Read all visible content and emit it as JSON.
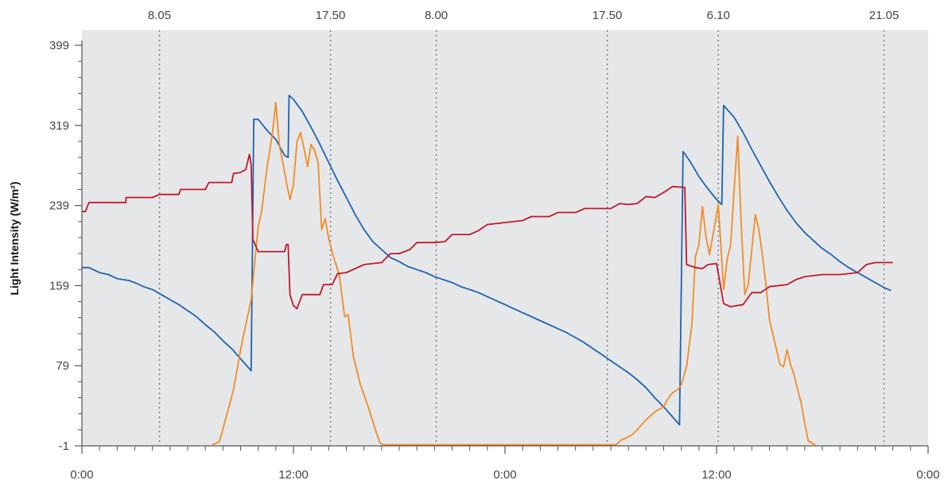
{
  "chart_data": {
    "type": "line",
    "ylabel": "Light Intensity (W/m²)",
    "xlabel": "",
    "xlim": [
      0,
      48
    ],
    "ylim": [
      -1,
      399
    ],
    "x_ticks": [
      0,
      12,
      24,
      36,
      48
    ],
    "x_tick_labels": [
      "0:00",
      "12:00",
      "0:00",
      "12:00",
      "0:00"
    ],
    "y_ticks": [
      -1,
      79,
      159,
      239,
      319,
      399
    ],
    "y_tick_labels": [
      "-1",
      "79",
      "159",
      "239",
      "319",
      "399"
    ],
    "grid": false,
    "background": "#e6e7e9",
    "event_markers": [
      {
        "x": 4.4,
        "label": "8.05"
      },
      {
        "x": 14.1,
        "label": "17.50"
      },
      {
        "x": 20.1,
        "label": "8.00"
      },
      {
        "x": 29.8,
        "label": "17.50"
      },
      {
        "x": 36.1,
        "label": "6.10"
      },
      {
        "x": 45.5,
        "label": "21.05"
      }
    ],
    "series": [
      {
        "color": "#1f63b0",
        "points": [
          [
            0,
            177
          ],
          [
            0.4,
            177
          ],
          [
            1,
            172
          ],
          [
            1.5,
            170
          ],
          [
            2,
            166
          ],
          [
            2.7,
            164
          ],
          [
            3,
            162
          ],
          [
            3.5,
            158
          ],
          [
            4,
            155
          ],
          [
            4.5,
            150
          ],
          [
            5,
            145
          ],
          [
            5.5,
            140
          ],
          [
            6,
            134
          ],
          [
            6.5,
            128
          ],
          [
            7,
            120
          ],
          [
            7.5,
            113
          ],
          [
            8,
            104
          ],
          [
            8.5,
            96
          ],
          [
            9,
            86
          ],
          [
            9.6,
            74
          ],
          [
            9.75,
            325
          ],
          [
            10,
            325
          ],
          [
            10.5,
            314
          ],
          [
            11,
            305
          ],
          [
            11.5,
            289
          ],
          [
            11.7,
            287
          ],
          [
            11.75,
            349
          ],
          [
            12,
            345
          ],
          [
            12.5,
            333
          ],
          [
            13,
            317
          ],
          [
            13.5,
            300
          ],
          [
            14,
            282
          ],
          [
            14.5,
            264
          ],
          [
            15,
            247
          ],
          [
            15.5,
            230
          ],
          [
            16,
            215
          ],
          [
            16.5,
            203
          ],
          [
            17,
            195
          ],
          [
            17.5,
            187
          ],
          [
            18,
            183
          ],
          [
            18.5,
            178
          ],
          [
            19,
            175
          ],
          [
            19.5,
            172
          ],
          [
            20,
            168
          ],
          [
            20.5,
            165
          ],
          [
            21,
            162
          ],
          [
            21.5,
            158
          ],
          [
            22,
            155
          ],
          [
            22.5,
            152
          ],
          [
            23,
            148
          ],
          [
            23.5,
            144
          ],
          [
            24,
            140
          ],
          [
            24.5,
            136
          ],
          [
            25,
            132
          ],
          [
            25.5,
            128
          ],
          [
            26,
            124
          ],
          [
            26.5,
            120
          ],
          [
            27,
            116
          ],
          [
            27.5,
            112
          ],
          [
            28,
            107
          ],
          [
            28.5,
            102
          ],
          [
            29,
            96
          ],
          [
            29.5,
            90
          ],
          [
            30,
            84
          ],
          [
            30.5,
            78
          ],
          [
            31,
            72
          ],
          [
            31.5,
            65
          ],
          [
            32,
            57
          ],
          [
            32.5,
            47
          ],
          [
            33,
            38
          ],
          [
            33.5,
            28
          ],
          [
            33.9,
            20
          ],
          [
            34.1,
            293
          ],
          [
            34.5,
            283
          ],
          [
            35,
            268
          ],
          [
            35.5,
            256
          ],
          [
            36,
            245
          ],
          [
            36.3,
            240
          ],
          [
            36.4,
            339
          ],
          [
            37,
            327
          ],
          [
            37.5,
            312
          ],
          [
            38,
            295
          ],
          [
            38.5,
            279
          ],
          [
            39,
            263
          ],
          [
            39.5,
            248
          ],
          [
            40,
            234
          ],
          [
            40.5,
            222
          ],
          [
            41,
            212
          ],
          [
            41.5,
            204
          ],
          [
            42,
            196
          ],
          [
            42.5,
            190
          ],
          [
            43,
            183
          ],
          [
            43.5,
            177
          ],
          [
            44,
            172
          ],
          [
            44.5,
            167
          ],
          [
            45,
            162
          ],
          [
            45.5,
            157
          ],
          [
            45.9,
            154
          ]
        ]
      },
      {
        "color": "#f08c26",
        "points": [
          [
            7.4,
            0
          ],
          [
            7.8,
            3
          ],
          [
            8.2,
            29
          ],
          [
            8.6,
            55
          ],
          [
            9,
            95
          ],
          [
            9.3,
            120
          ],
          [
            9.6,
            145
          ],
          [
            10,
            218
          ],
          [
            10.2,
            234
          ],
          [
            10.5,
            277
          ],
          [
            10.8,
            310
          ],
          [
            11,
            342
          ],
          [
            11.2,
            299
          ],
          [
            11.4,
            282
          ],
          [
            11.6,
            262
          ],
          [
            11.8,
            245
          ],
          [
            12,
            260
          ],
          [
            12.2,
            303
          ],
          [
            12.4,
            312
          ],
          [
            12.6,
            296
          ],
          [
            12.8,
            278
          ],
          [
            13,
            300
          ],
          [
            13.2,
            294
          ],
          [
            13.4,
            282
          ],
          [
            13.6,
            215
          ],
          [
            13.8,
            226
          ],
          [
            14,
            206
          ],
          [
            14.3,
            186
          ],
          [
            14.6,
            170
          ],
          [
            14.9,
            128
          ],
          [
            15.1,
            130
          ],
          [
            15.4,
            88
          ],
          [
            15.8,
            60
          ],
          [
            16.2,
            40
          ],
          [
            16.6,
            18
          ],
          [
            16.9,
            2
          ],
          [
            17.1,
            0
          ],
          [
            30.3,
            0
          ],
          [
            30.6,
            5
          ],
          [
            30.9,
            7
          ],
          [
            31.2,
            10
          ],
          [
            31.5,
            15
          ],
          [
            32,
            25
          ],
          [
            32.5,
            33
          ],
          [
            33,
            38
          ],
          [
            33.2,
            45
          ],
          [
            33.5,
            52
          ],
          [
            33.8,
            55
          ],
          [
            34,
            60
          ],
          [
            34.3,
            78
          ],
          [
            34.6,
            120
          ],
          [
            34.8,
            188
          ],
          [
            35,
            200
          ],
          [
            35.2,
            238
          ],
          [
            35.4,
            208
          ],
          [
            35.6,
            190
          ],
          [
            35.8,
            210
          ],
          [
            36.1,
            240
          ],
          [
            36.4,
            155
          ],
          [
            36.6,
            185
          ],
          [
            36.8,
            200
          ],
          [
            37,
            255
          ],
          [
            37.2,
            308
          ],
          [
            37.4,
            220
          ],
          [
            37.6,
            150
          ],
          [
            37.8,
            160
          ],
          [
            38,
            195
          ],
          [
            38.2,
            230
          ],
          [
            38.4,
            215
          ],
          [
            38.6,
            190
          ],
          [
            38.8,
            160
          ],
          [
            39,
            125
          ],
          [
            39.2,
            110
          ],
          [
            39.4,
            95
          ],
          [
            39.6,
            80
          ],
          [
            39.8,
            78
          ],
          [
            40,
            95
          ],
          [
            40.2,
            80
          ],
          [
            40.4,
            70
          ],
          [
            40.6,
            55
          ],
          [
            40.8,
            42
          ],
          [
            41,
            22
          ],
          [
            41.2,
            4
          ],
          [
            41.6,
            0
          ]
        ]
      },
      {
        "color": "#c0182e",
        "points": [
          [
            0,
            233
          ],
          [
            0.2,
            233
          ],
          [
            0.4,
            242
          ],
          [
            2.5,
            242
          ],
          [
            2.5,
            247
          ],
          [
            4,
            247
          ],
          [
            4.4,
            250
          ],
          [
            5.5,
            250
          ],
          [
            5.6,
            255
          ],
          [
            7,
            255
          ],
          [
            7.2,
            262
          ],
          [
            8.5,
            262
          ],
          [
            8.6,
            271
          ],
          [
            9,
            272
          ],
          [
            9.3,
            275
          ],
          [
            9.5,
            290
          ],
          [
            9.6,
            280
          ],
          [
            9.7,
            205
          ],
          [
            10,
            193
          ],
          [
            11.5,
            193
          ],
          [
            11.6,
            200
          ],
          [
            11.7,
            200
          ],
          [
            11.8,
            150
          ],
          [
            12,
            139
          ],
          [
            12.2,
            136
          ],
          [
            12.5,
            150
          ],
          [
            13.5,
            150
          ],
          [
            13.7,
            160
          ],
          [
            14.2,
            160
          ],
          [
            14.5,
            171
          ],
          [
            15,
            172
          ],
          [
            15.5,
            176
          ],
          [
            16,
            180
          ],
          [
            17,
            182
          ],
          [
            17.5,
            191
          ],
          [
            18,
            191
          ],
          [
            18.6,
            195
          ],
          [
            19,
            202
          ],
          [
            20,
            202
          ],
          [
            20.6,
            203
          ],
          [
            21,
            210
          ],
          [
            22,
            210
          ],
          [
            22.5,
            214
          ],
          [
            23,
            220
          ],
          [
            24,
            222
          ],
          [
            25,
            224
          ],
          [
            25.5,
            228
          ],
          [
            26.5,
            228
          ],
          [
            27,
            232
          ],
          [
            28,
            232
          ],
          [
            28.5,
            236
          ],
          [
            30,
            236
          ],
          [
            30.5,
            241
          ],
          [
            31,
            240
          ],
          [
            31.5,
            241
          ],
          [
            32,
            248
          ],
          [
            32.5,
            247
          ],
          [
            33,
            252
          ],
          [
            33.5,
            258
          ],
          [
            34.2,
            257
          ],
          [
            34.3,
            180
          ],
          [
            34.8,
            177
          ],
          [
            35.2,
            176
          ],
          [
            35.5,
            180
          ],
          [
            36,
            181
          ],
          [
            36.4,
            141
          ],
          [
            36.8,
            138
          ],
          [
            37.5,
            140
          ],
          [
            38,
            152
          ],
          [
            38.5,
            152
          ],
          [
            39,
            158
          ],
          [
            40,
            160
          ],
          [
            40.5,
            165
          ],
          [
            41,
            168
          ],
          [
            42,
            170
          ],
          [
            43,
            170
          ],
          [
            44,
            172
          ],
          [
            44.5,
            180
          ],
          [
            45,
            182
          ],
          [
            46,
            182
          ]
        ]
      }
    ]
  }
}
